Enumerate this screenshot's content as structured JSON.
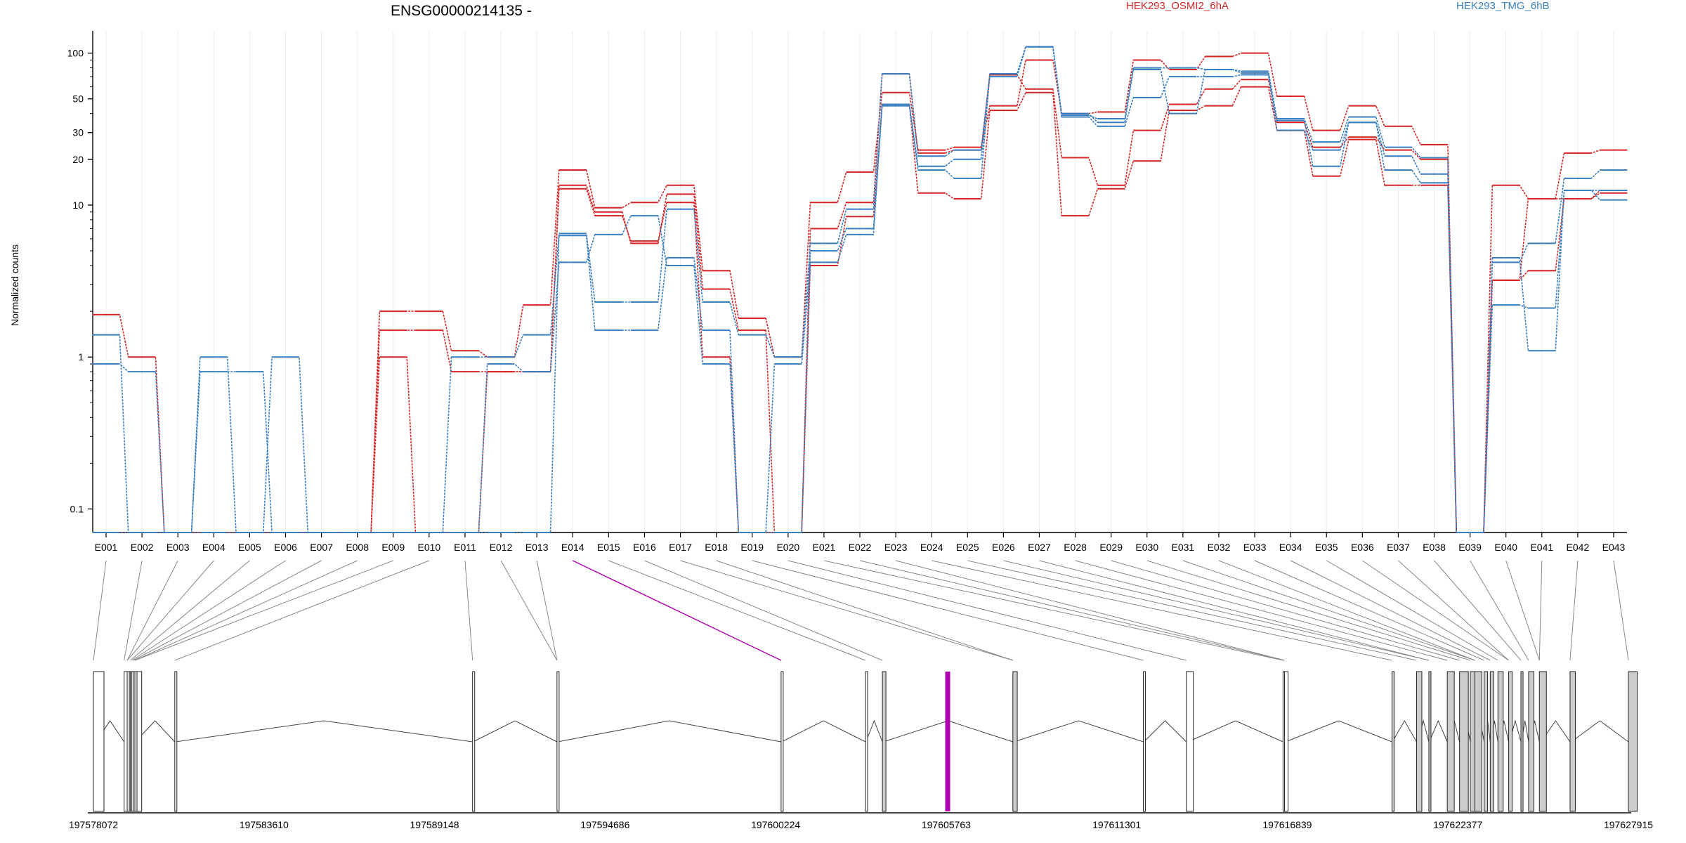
{
  "chart_data": {
    "type": "line",
    "title": "ENSG00000214135 -",
    "ylabel": "Normalized counts",
    "y_scale": "log",
    "y_ticks": [
      0.1,
      1,
      10,
      20,
      30,
      50,
      100
    ],
    "ylim": [
      0.07,
      140
    ],
    "grid": "vertical",
    "legend_position": "top-right",
    "colors": {
      "osmi": "#d62728",
      "tmg": "#3a7fbf",
      "axis": "#000000",
      "connector": "#888888",
      "highlight": "#b000b0",
      "exon_fill": "#cccccc"
    },
    "categories": [
      "E001",
      "E002",
      "E003",
      "E004",
      "E005",
      "E006",
      "E007",
      "E008",
      "E009",
      "E010",
      "E011",
      "E012",
      "E013",
      "E014",
      "E015",
      "E016",
      "E017",
      "E018",
      "E019",
      "E020",
      "E021",
      "E022",
      "E023",
      "E024",
      "E025",
      "E026",
      "E027",
      "E028",
      "E029",
      "E030",
      "E031",
      "E032",
      "E033",
      "E034",
      "E035",
      "E036",
      "E037",
      "E038",
      "E039",
      "E040",
      "E041",
      "E042",
      "E043"
    ],
    "legend": [
      {
        "name": "HEK293_OSMI2_6hA",
        "color": "#d62728"
      },
      {
        "name": "HEK293_TMG_6hB",
        "color": "#3a7fbf"
      }
    ],
    "series": [
      {
        "group": "HEK293_OSMI2_6hA",
        "color": "#d62728",
        "values": [
          1.9,
          1.0,
          0.07,
          0.07,
          0.07,
          0.07,
          0.07,
          0.07,
          2.0,
          2.0,
          1.1,
          1.0,
          2.2,
          17,
          9.6,
          10.4,
          13.5,
          3.7,
          1.8,
          1.0,
          10.4,
          16.5,
          55,
          23,
          24,
          45,
          90,
          40,
          41,
          90,
          78,
          95,
          100,
          52,
          31,
          45,
          33,
          25,
          0.07,
          13.5,
          11,
          22,
          23
        ]
      },
      {
        "group": "HEK293_OSMI2_6hA",
        "color": "#d62728",
        "values": [
          0.07,
          0.07,
          0.07,
          0.07,
          0.07,
          0.07,
          0.07,
          0.07,
          1.5,
          1.5,
          0.8,
          0.8,
          0.8,
          13.5,
          9.0,
          5.6,
          11.8,
          2.8,
          1.5,
          0.07,
          7.0,
          10.4,
          73,
          22,
          23,
          72,
          58,
          20.5,
          13.5,
          31,
          46,
          58,
          67,
          35,
          24,
          28,
          23,
          20,
          0.07,
          3.2,
          11,
          11,
          12.5
        ]
      },
      {
        "group": "HEK293_OSMI2_6hA",
        "color": "#d62728",
        "values": [
          0.07,
          0.07,
          0.07,
          0.07,
          0.07,
          0.07,
          0.07,
          0.07,
          1.0,
          0.07,
          0.07,
          0.8,
          0.8,
          12.8,
          8.5,
          5.8,
          10.4,
          1.0,
          0.07,
          0.07,
          4.0,
          8.4,
          46,
          12,
          11,
          42,
          55,
          8.5,
          12.8,
          19.5,
          42,
          45,
          60,
          31,
          15.5,
          27,
          13.5,
          13.5,
          0.07,
          3.2,
          3.7,
          11,
          12
        ]
      },
      {
        "group": "HEK293_TMG_6hB",
        "color": "#3a7fbf",
        "values": [
          1.4,
          0.07,
          0.07,
          1.0,
          0.07,
          1.0,
          0.07,
          0.07,
          0.07,
          0.07,
          1.0,
          1.0,
          1.4,
          6.5,
          2.3,
          2.3,
          9.4,
          2.3,
          1.4,
          1.0,
          5.6,
          9.4,
          73,
          21,
          23,
          73,
          110,
          39,
          37,
          80,
          80,
          78,
          76,
          37,
          26,
          38,
          24,
          20.5,
          0.07,
          4.2,
          5.6,
          15,
          17
        ]
      },
      {
        "group": "HEK293_TMG_6hB",
        "color": "#3a7fbf",
        "values": [
          0.9,
          0.8,
          0.07,
          0.8,
          0.8,
          0.07,
          0.07,
          0.07,
          0.07,
          0.07,
          0.07,
          0.9,
          0.8,
          4.2,
          6.4,
          8.5,
          4.0,
          0.9,
          0.07,
          0.9,
          4.2,
          6.4,
          46,
          18,
          20,
          70,
          110,
          38,
          33,
          51,
          70,
          70,
          72,
          36,
          18,
          35,
          21,
          16,
          0.07,
          2.2,
          2.1,
          12.5,
          10.8
        ]
      },
      {
        "group": "HEK293_TMG_6hB",
        "color": "#3a7fbf",
        "values": [
          0.07,
          0.07,
          0.07,
          0.07,
          0.07,
          0.07,
          0.07,
          0.07,
          0.07,
          0.07,
          0.07,
          0.07,
          0.07,
          6.3,
          1.5,
          1.5,
          4.5,
          1.5,
          0.07,
          0.07,
          5.0,
          7.0,
          45,
          17,
          15,
          73,
          110,
          40,
          35,
          78,
          40,
          78,
          74,
          31,
          23,
          35,
          17,
          14,
          0.07,
          4.5,
          1.1,
          12.5,
          12.5
        ]
      }
    ],
    "gene_model": {
      "coordinate_ticks": [
        "197578072",
        "197583610",
        "197589148",
        "197594686",
        "197600224",
        "197605763",
        "197611301",
        "197616839",
        "197622377",
        "197627915"
      ],
      "exon_genomic_fractions": [
        0.0,
        0.02,
        0.022,
        0.024,
        0.025,
        0.026,
        0.027,
        0.053,
        0.247,
        0.302,
        0.448,
        0.503,
        0.514,
        0.599,
        0.684,
        0.712,
        0.775,
        0.776,
        0.846,
        0.862,
        0.87,
        0.882,
        0.89,
        0.897,
        0.9,
        0.906,
        0.91,
        0.915,
        0.922,
        0.93,
        0.935,
        0.942,
        0.962,
        1.0
      ],
      "exon_widths": [
        0.6,
        1.0,
        0.12,
        0.15,
        0.12,
        0.12,
        0.1,
        0.1,
        0.1,
        0.1,
        0.12,
        0.1,
        0.2,
        0.25,
        0.12,
        0.4,
        0.2,
        0.2,
        0.1,
        0.3,
        0.1,
        0.4,
        0.5,
        0.3,
        0.4,
        0.2,
        0.2,
        0.3,
        0.2,
        0.1,
        0.3,
        0.4,
        0.3,
        0.5
      ],
      "exon_filled": [
        false,
        false,
        false,
        false,
        false,
        false,
        false,
        false,
        false,
        false,
        false,
        false,
        true,
        true,
        false,
        false,
        false,
        false,
        true,
        true,
        true,
        true,
        true,
        true,
        true,
        true,
        true,
        true,
        true,
        true,
        true,
        true,
        true,
        true
      ],
      "highlight_exon": "E014"
    }
  }
}
